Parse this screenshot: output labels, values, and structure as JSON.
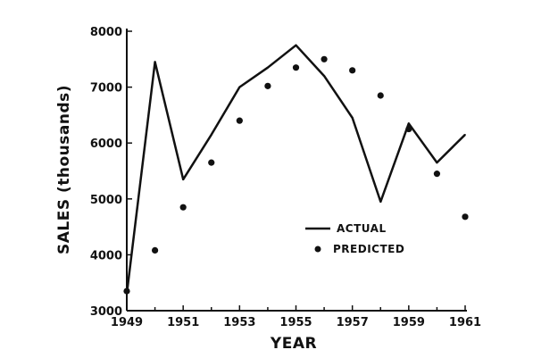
{
  "chart_data": {
    "type": "line",
    "title": "",
    "xlabel": "YEAR",
    "ylabel": "SALES (thousands)",
    "xlim": [
      1949,
      1961
    ],
    "ylim": [
      3000,
      8000
    ],
    "x_ticks": [
      1949,
      1951,
      1953,
      1955,
      1957,
      1959,
      1961
    ],
    "x_tick_labels": [
      "1949",
      "1951",
      "1953",
      "1955",
      "1957",
      "1959",
      "1961"
    ],
    "y_ticks": [
      3000,
      4000,
      5000,
      6000,
      7000,
      8000
    ],
    "y_tick_labels": [
      "3000",
      "4000",
      "5000",
      "6000",
      "7000",
      "8000"
    ],
    "grid": false,
    "legend": "inside-right",
    "series": [
      {
        "name": "ACTUAL",
        "style": "line",
        "x": [
          1949,
          1950,
          1951,
          1952,
          1953,
          1954,
          1955,
          1956,
          1957,
          1958,
          1959,
          1960,
          1961
        ],
        "values": [
          3300,
          7450,
          5350,
          6150,
          7000,
          7350,
          7750,
          7200,
          6450,
          4950,
          6350,
          5650,
          6150
        ]
      },
      {
        "name": "PREDICTED",
        "style": "points",
        "x": [
          1949,
          1950,
          1951,
          1952,
          1953,
          1954,
          1955,
          1956,
          1957,
          1958,
          1959,
          1960,
          1961
        ],
        "values": [
          3350,
          4080,
          4850,
          5650,
          6400,
          7020,
          7350,
          7500,
          7300,
          6850,
          6250,
          5450,
          4680
        ]
      }
    ]
  },
  "colors": {
    "ink": "#111111",
    "background": "#ffffff"
  }
}
